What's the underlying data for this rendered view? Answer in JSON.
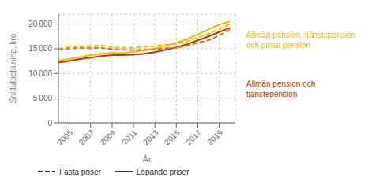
{
  "chart_data": {
    "type": "line",
    "x": [
      2004,
      2005,
      2006,
      2007,
      2008,
      2009,
      2010,
      2011,
      2012,
      2013,
      2014,
      2015,
      2016,
      2017,
      2018,
      2019,
      2020
    ],
    "series": [
      {
        "color": "#F5B800",
        "line_style": "solid",
        "values": [
          12600,
          12900,
          13300,
          13700,
          14000,
          14200,
          14100,
          14400,
          14700,
          15000,
          15600,
          16200,
          16900,
          17900,
          18900,
          19900,
          20500
        ]
      },
      {
        "color": "#F5B800",
        "line_style": "dashed",
        "values": [
          15000,
          15300,
          15500,
          15500,
          15700,
          15300,
          15200,
          15200,
          15400,
          15500,
          15800,
          16000,
          16500,
          17300,
          18000,
          19000,
          20000
        ]
      },
      {
        "color": "#CC3300",
        "line_style": "solid",
        "values": [
          12200,
          12500,
          12900,
          13200,
          13500,
          13700,
          13700,
          13800,
          14000,
          14300,
          14800,
          15300,
          15900,
          16700,
          17500,
          18400,
          19200
        ]
      },
      {
        "color": "#E07020",
        "line_style": "dashed",
        "values": [
          14800,
          15000,
          15200,
          15100,
          15200,
          14900,
          14800,
          14700,
          14800,
          14900,
          15100,
          15200,
          15600,
          16200,
          16700,
          17700,
          18800
        ]
      }
    ],
    "xlim": [
      2004,
      2020.5
    ],
    "xticks": [
      2005,
      2007,
      2009,
      2011,
      2013,
      2015,
      2017,
      2019
    ],
    "ylim": [
      0,
      22000
    ],
    "yticks": [
      0,
      {
        "value": 5000,
        "label": "5 000"
      },
      {
        "value": 10000,
        "label": "10 000"
      },
      {
        "value": 15000,
        "label": "15 000"
      },
      {
        "value": 20000,
        "label": "20 000"
      }
    ],
    "xlabel": "År",
    "ylabel": "Snittutbetalning, kro",
    "grid": true,
    "annotations": [
      {
        "text": "Allmän pension, tjänstepension\noch privat pension",
        "color": "#F5B800"
      },
      {
        "text": "Allmän pension och\ntjänstepension",
        "color": "#CC3300"
      },
      {
        "text": "Fasta priser",
        "line_style": "dashed"
      },
      {
        "text": "Löpande priser",
        "line_style": "solid"
      }
    ]
  }
}
